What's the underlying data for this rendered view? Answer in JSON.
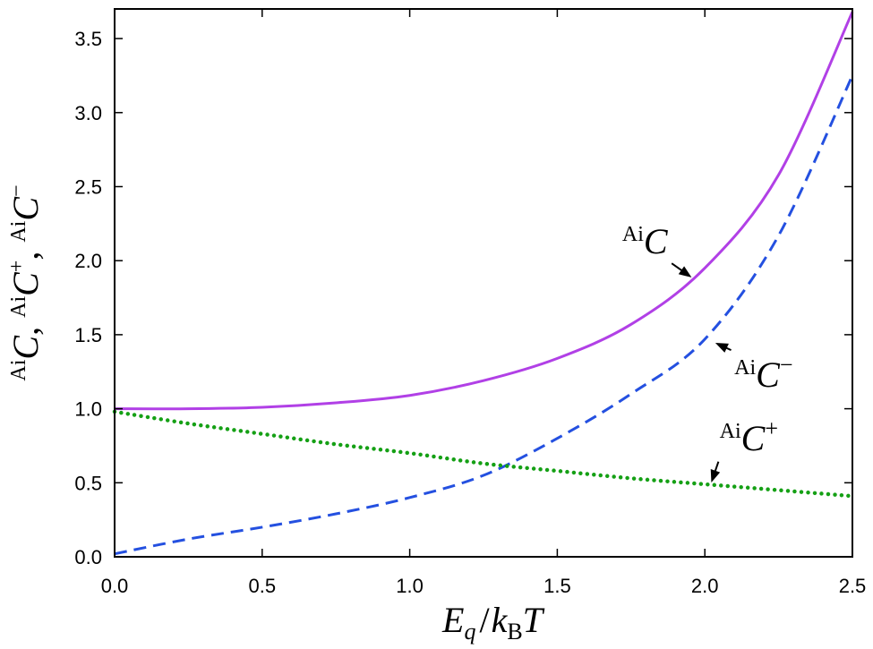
{
  "chart_data": {
    "type": "line",
    "xlabel": {
      "main": "E",
      "sub": "q",
      "slash": "/",
      "k": "k",
      "ksub": "B",
      "t": "T"
    },
    "ylabel": [
      {
        "sup": "Ai",
        "main": "C",
        "sep": ","
      },
      {
        "sup": "Ai",
        "main": "C",
        "post": "+",
        "sep": ","
      },
      {
        "sup": "Ai",
        "main": "C",
        "post": "−",
        "sep": ""
      }
    ],
    "xlim": [
      0,
      2.5
    ],
    "ylim": [
      0,
      3.7
    ],
    "xticks": [
      0.0,
      0.5,
      1.0,
      1.5,
      2.0,
      2.5
    ],
    "xtick_labels": [
      "0.0",
      "0.5",
      "1.0",
      "1.5",
      "2.0",
      "2.5"
    ],
    "yticks": [
      0.0,
      0.5,
      1.0,
      1.5,
      2.0,
      2.5,
      3.0,
      3.5
    ],
    "ytick_labels": [
      "0.0",
      "0.5",
      "1.0",
      "1.5",
      "2.0",
      "2.5",
      "3.0",
      "3.5"
    ],
    "grid": false,
    "series": [
      {
        "id": "c",
        "color": "#b140e6",
        "style": "solid",
        "x": [
          0,
          0.25,
          0.5,
          0.75,
          1.0,
          1.25,
          1.5,
          1.75,
          2.0,
          2.25,
          2.5
        ],
        "y": [
          1.0,
          1.0,
          1.01,
          1.04,
          1.09,
          1.19,
          1.34,
          1.57,
          1.95,
          2.58,
          3.68
        ]
      },
      {
        "id": "c-minus",
        "color": "#2450e0",
        "style": "dashed",
        "x": [
          0,
          0.25,
          0.5,
          0.75,
          1.0,
          1.25,
          1.5,
          1.75,
          2.0,
          2.25,
          2.5
        ],
        "y": [
          0.02,
          0.12,
          0.2,
          0.29,
          0.4,
          0.55,
          0.8,
          1.1,
          1.47,
          2.17,
          3.25
        ]
      },
      {
        "id": "c-plus",
        "color": "#15a015",
        "style": "dotted",
        "x": [
          0,
          0.25,
          0.5,
          0.75,
          1.0,
          1.25,
          1.5,
          1.75,
          2.0,
          2.25,
          2.5
        ],
        "y": [
          0.98,
          0.9,
          0.83,
          0.76,
          0.7,
          0.63,
          0.58,
          0.53,
          0.49,
          0.45,
          0.41
        ]
      }
    ],
    "annotations": [
      {
        "series": "c",
        "sup": "Ai",
        "main": "C",
        "post": "",
        "at": [
          1.96,
          1.88
        ],
        "text_at": [
          1.72,
          2.05
        ]
      },
      {
        "series": "c-minus",
        "sup": "Ai",
        "main": "C",
        "post": "−",
        "at": [
          2.03,
          1.45
        ],
        "text_at": [
          2.1,
          1.15
        ]
      },
      {
        "series": "c-plus",
        "sup": "Ai",
        "main": "C",
        "post": "+",
        "at": [
          2.02,
          0.49
        ],
        "text_at": [
          2.05,
          0.72
        ]
      }
    ]
  }
}
